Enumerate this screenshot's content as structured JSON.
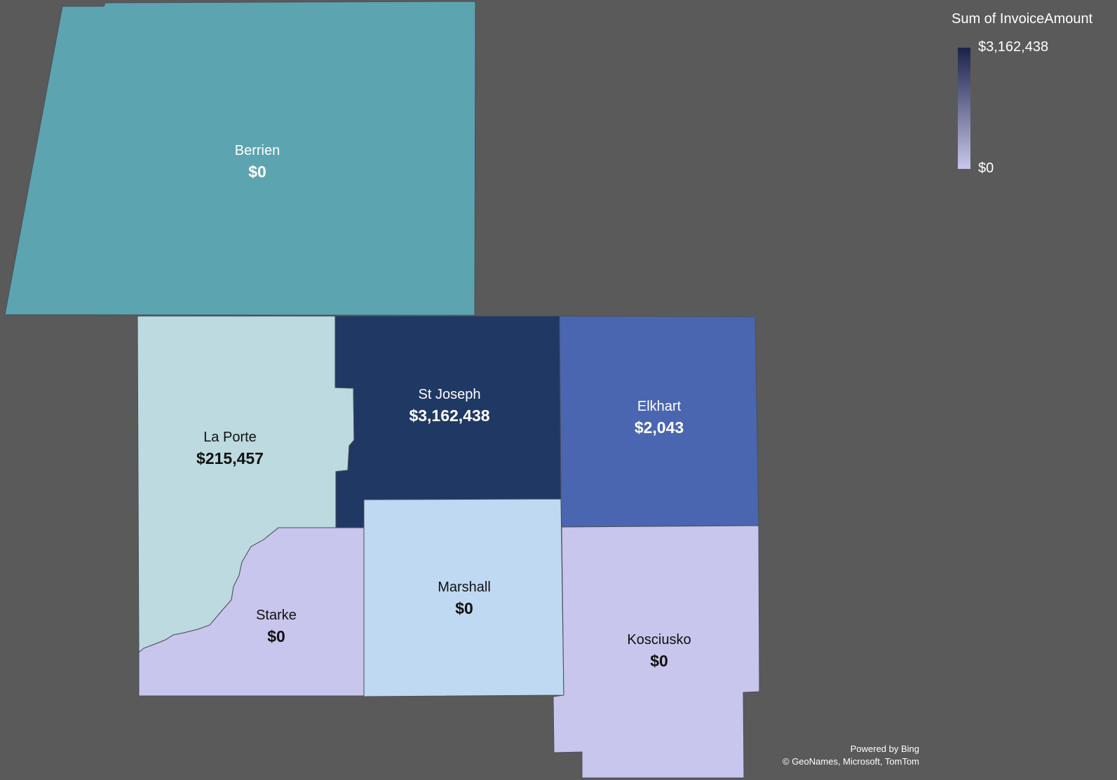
{
  "legend": {
    "title": "Sum of InvoiceAmount",
    "max_label": "$3,162,438",
    "min_label": "$0",
    "max_color": "#1b2248",
    "min_color": "#c8c6ec"
  },
  "regions": [
    {
      "name": "Berrien",
      "value": "$0",
      "fill": "#5ca4b0",
      "text_color": "#ffffff"
    },
    {
      "name": "La Porte",
      "value": "$215,457",
      "fill": "#bcdadf",
      "text_color": "#111111"
    },
    {
      "name": "St Joseph",
      "value": "$3,162,438",
      "fill": "#203864",
      "text_color": "#ffffff"
    },
    {
      "name": "Elkhart",
      "value": "$2,043",
      "fill": "#4a66b0",
      "text_color": "#ffffff"
    },
    {
      "name": "Starke",
      "value": "$0",
      "fill": "#c8c6ec",
      "text_color": "#111111"
    },
    {
      "name": "Marshall",
      "value": "$0",
      "fill": "#bfd9f2",
      "text_color": "#111111"
    },
    {
      "name": "Kosciusko",
      "value": "$0",
      "fill": "#c8c6ec",
      "text_color": "#111111"
    }
  ],
  "attribution": {
    "line1": "Powered by Bing",
    "line2": "© GeoNames, Microsoft, TomTom"
  }
}
